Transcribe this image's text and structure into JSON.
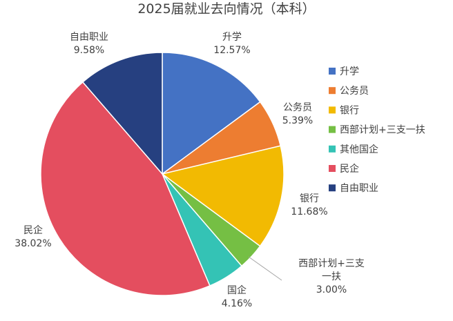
{
  "chart_data": {
    "type": "pie",
    "title": "2025届就业去向情况（本科）",
    "unit": "%",
    "legend_position": "right",
    "slices": [
      {
        "name": "升学",
        "label_lines": [
          "升学"
        ],
        "value": 12.57,
        "value_text": "12.57%",
        "color": "#4472C4"
      },
      {
        "name": "公务员",
        "label_lines": [
          "公务员"
        ],
        "value": 5.39,
        "value_text": "5.39%",
        "color": "#ED7D31"
      },
      {
        "name": "银行",
        "label_lines": [
          "银行"
        ],
        "value": 11.68,
        "value_text": "11.68%",
        "color": "#F2BA02"
      },
      {
        "name": "西部计划+三支一扶",
        "label_lines": [
          "西部计划+三支",
          "一扶"
        ],
        "value": 3.0,
        "value_text": "3.00%",
        "color": "#75BF44"
      },
      {
        "name": "其他国企",
        "label_lines": [
          "国企"
        ],
        "value": 4.16,
        "value_text": "4.16%",
        "color": "#34C3B5"
      },
      {
        "name": "民企",
        "label_lines": [
          "民企"
        ],
        "value": 38.02,
        "value_text": "38.02%",
        "color": "#E44E5F"
      },
      {
        "name": "自由职业",
        "label_lines": [
          "自由职业"
        ],
        "value": 9.58,
        "value_text": "9.58%",
        "color": "#264080"
      }
    ]
  }
}
